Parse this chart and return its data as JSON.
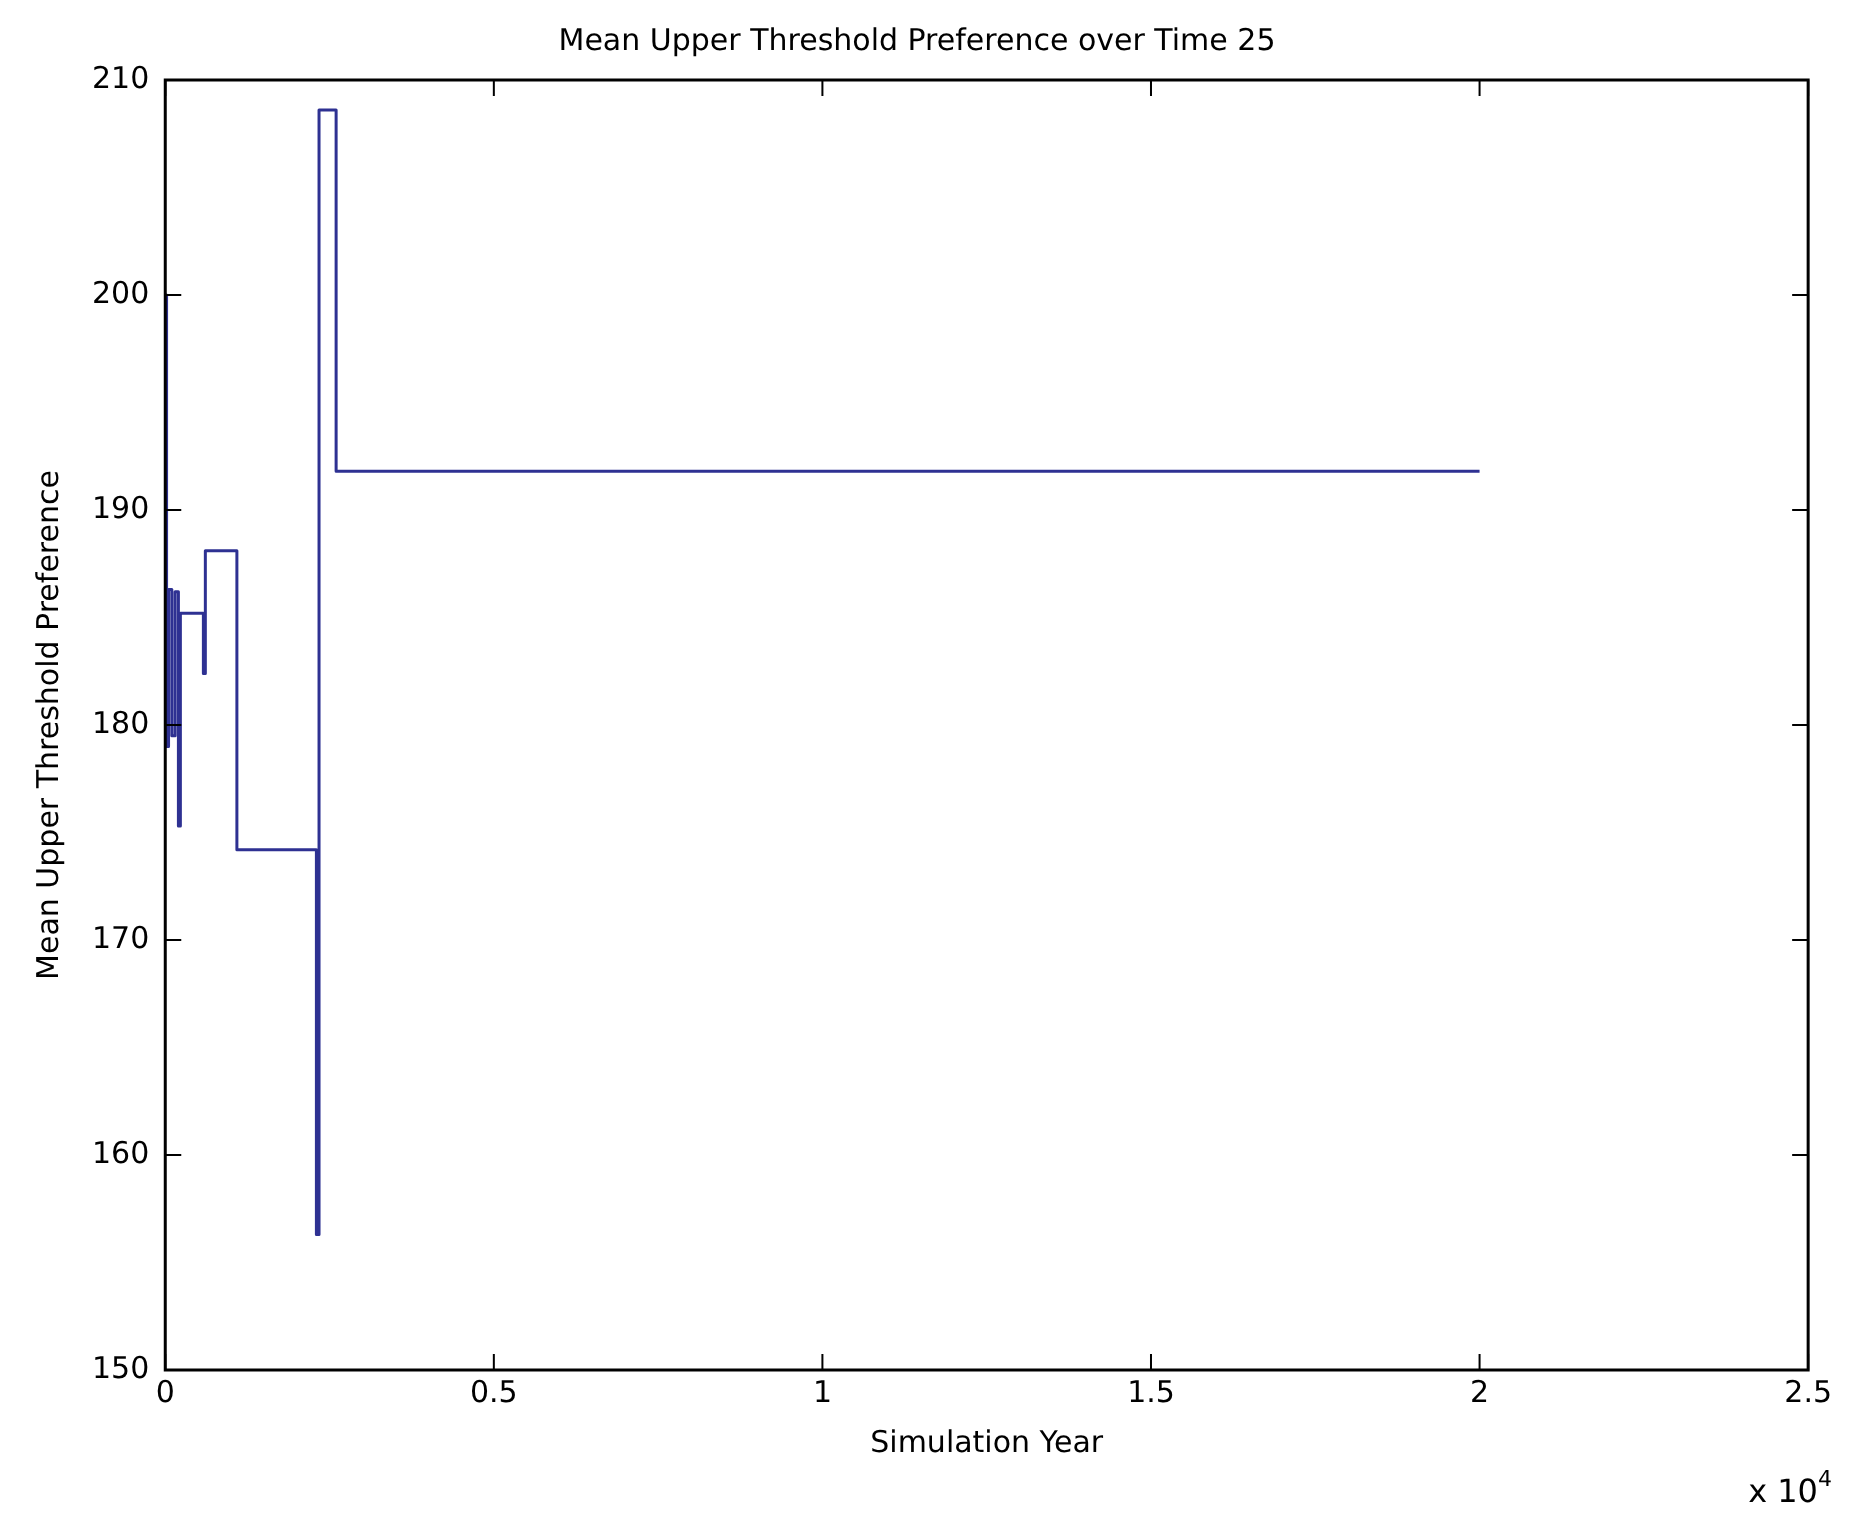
{
  "chart_data": {
    "type": "step",
    "title": "Mean Upper Threshold Preference over Time 25",
    "xlabel": "Simulation Year",
    "ylabel": "Mean Upper Threshold Preference",
    "x": [
      0,
      0.002,
      0.005,
      0.01,
      0.015,
      0.02,
      0.023,
      0.058,
      0.061,
      0.109,
      0.23,
      0.234,
      0.26,
      2
    ],
    "series": [
      {
        "color": "#2e3192",
        "values": [
          200,
          179,
          186.3,
          179.5,
          186.2,
          175.3,
          185.2,
          182.4,
          188.1,
          174.2,
          156.3,
          208.6,
          191.8,
          191.8
        ]
      }
    ],
    "xlim": [
      0,
      2.5
    ],
    "xticks": [
      0,
      0.5,
      1,
      1.5,
      2,
      2.5
    ],
    "ylim": [
      150,
      210
    ],
    "yticks": [
      150,
      160,
      170,
      180,
      190,
      200,
      210
    ],
    "annotations": [
      "x 10$^{4}$"
    ],
    "grid": false,
    "legend": false
  }
}
